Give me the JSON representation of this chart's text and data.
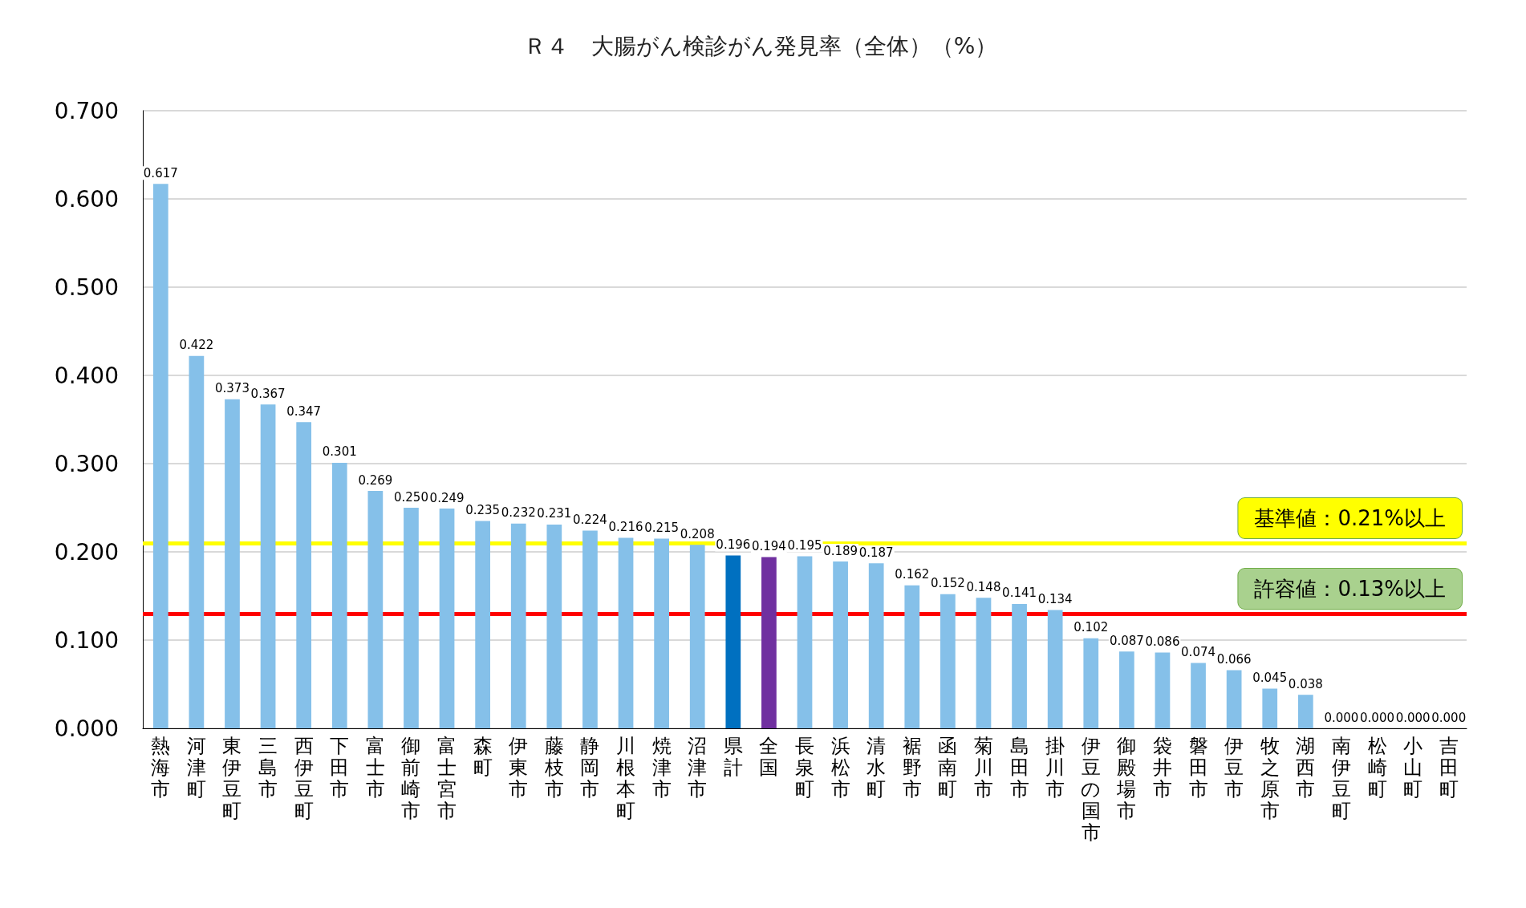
{
  "chart_data": {
    "type": "bar",
    "title": "Ｒ４　大腸がん検診がん発見率（全体）（%）",
    "categories": [
      "熱海市",
      "河津町",
      "東伊豆町",
      "三島市",
      "西伊豆町",
      "下田市",
      "富士市",
      "御前崎市",
      "富士宮市",
      "森町",
      "伊東市",
      "藤枝市",
      "静岡市",
      "川根本町",
      "焼津市",
      "沼津市",
      "県計",
      "全国",
      "長泉町",
      "浜松市",
      "清水町",
      "裾野市",
      "函南町",
      "菊川市",
      "島田市",
      "掛川市",
      "伊豆の国市",
      "御殿場市",
      "袋井市",
      "磐田市",
      "伊豆市",
      "牧之原市",
      "湖西市",
      "南伊豆町",
      "松崎町",
      "小山町",
      "吉田町"
    ],
    "values": [
      0.617,
      0.422,
      0.373,
      0.367,
      0.347,
      0.301,
      0.269,
      0.25,
      0.249,
      0.235,
      0.232,
      0.231,
      0.224,
      0.216,
      0.215,
      0.208,
      0.196,
      0.194,
      0.195,
      0.189,
      0.187,
      0.162,
      0.152,
      0.148,
      0.141,
      0.134,
      0.102,
      0.087,
      0.086,
      0.074,
      0.066,
      0.045,
      0.038,
      0.0,
      0.0,
      0.0,
      0.0
    ],
    "colors": [
      "#85c0e9",
      "#85c0e9",
      "#85c0e9",
      "#85c0e9",
      "#85c0e9",
      "#85c0e9",
      "#85c0e9",
      "#85c0e9",
      "#85c0e9",
      "#85c0e9",
      "#85c0e9",
      "#85c0e9",
      "#85c0e9",
      "#85c0e9",
      "#85c0e9",
      "#85c0e9",
      "#0070c0",
      "#7030a0",
      "#85c0e9",
      "#85c0e9",
      "#85c0e9",
      "#85c0e9",
      "#85c0e9",
      "#85c0e9",
      "#85c0e9",
      "#85c0e9",
      "#85c0e9",
      "#85c0e9",
      "#85c0e9",
      "#85c0e9",
      "#85c0e9",
      "#85c0e9",
      "#85c0e9",
      "#85c0e9",
      "#85c0e9",
      "#85c0e9",
      "#85c0e9"
    ],
    "value_labels": [
      "0.617",
      "0.422",
      "0.373",
      "0.367",
      "0.347",
      "0.301",
      "0.269",
      "0.250",
      "0.249",
      "0.235",
      "0.232",
      "0.231",
      "0.224",
      "0.216",
      "0.215",
      "0.208",
      "0.196",
      "0.194",
      "0.195",
      "0.189",
      "0.187",
      "0.162",
      "0.152",
      "0.148",
      "0.141",
      "0.134",
      "0.102",
      "0.087",
      "0.086",
      "0.074",
      "0.066",
      "0.045",
      "0.038",
      "0.000",
      "0.000",
      "0.000",
      "0.000"
    ],
    "ylim": [
      0,
      0.7
    ],
    "yticks": [
      {
        "value": 0,
        "label": "0.000"
      },
      {
        "value": 0.1,
        "label": "0.100"
      },
      {
        "value": 0.2,
        "label": "0.200"
      },
      {
        "value": 0.3,
        "label": "0.300"
      },
      {
        "value": 0.4,
        "label": "0.400"
      },
      {
        "value": 0.5,
        "label": "0.500"
      },
      {
        "value": 0.6,
        "label": "0.600"
      },
      {
        "value": 0.7,
        "label": "0.700"
      }
    ],
    "ref_lines": [
      {
        "axis": "y",
        "value": 0.21,
        "label": "基準値：0.21%以上",
        "color": "#ffff00"
      },
      {
        "axis": "y",
        "value": 0.13,
        "label": "許容値：0.13%以上",
        "color": "#ff0000"
      }
    ],
    "grid": "y"
  }
}
